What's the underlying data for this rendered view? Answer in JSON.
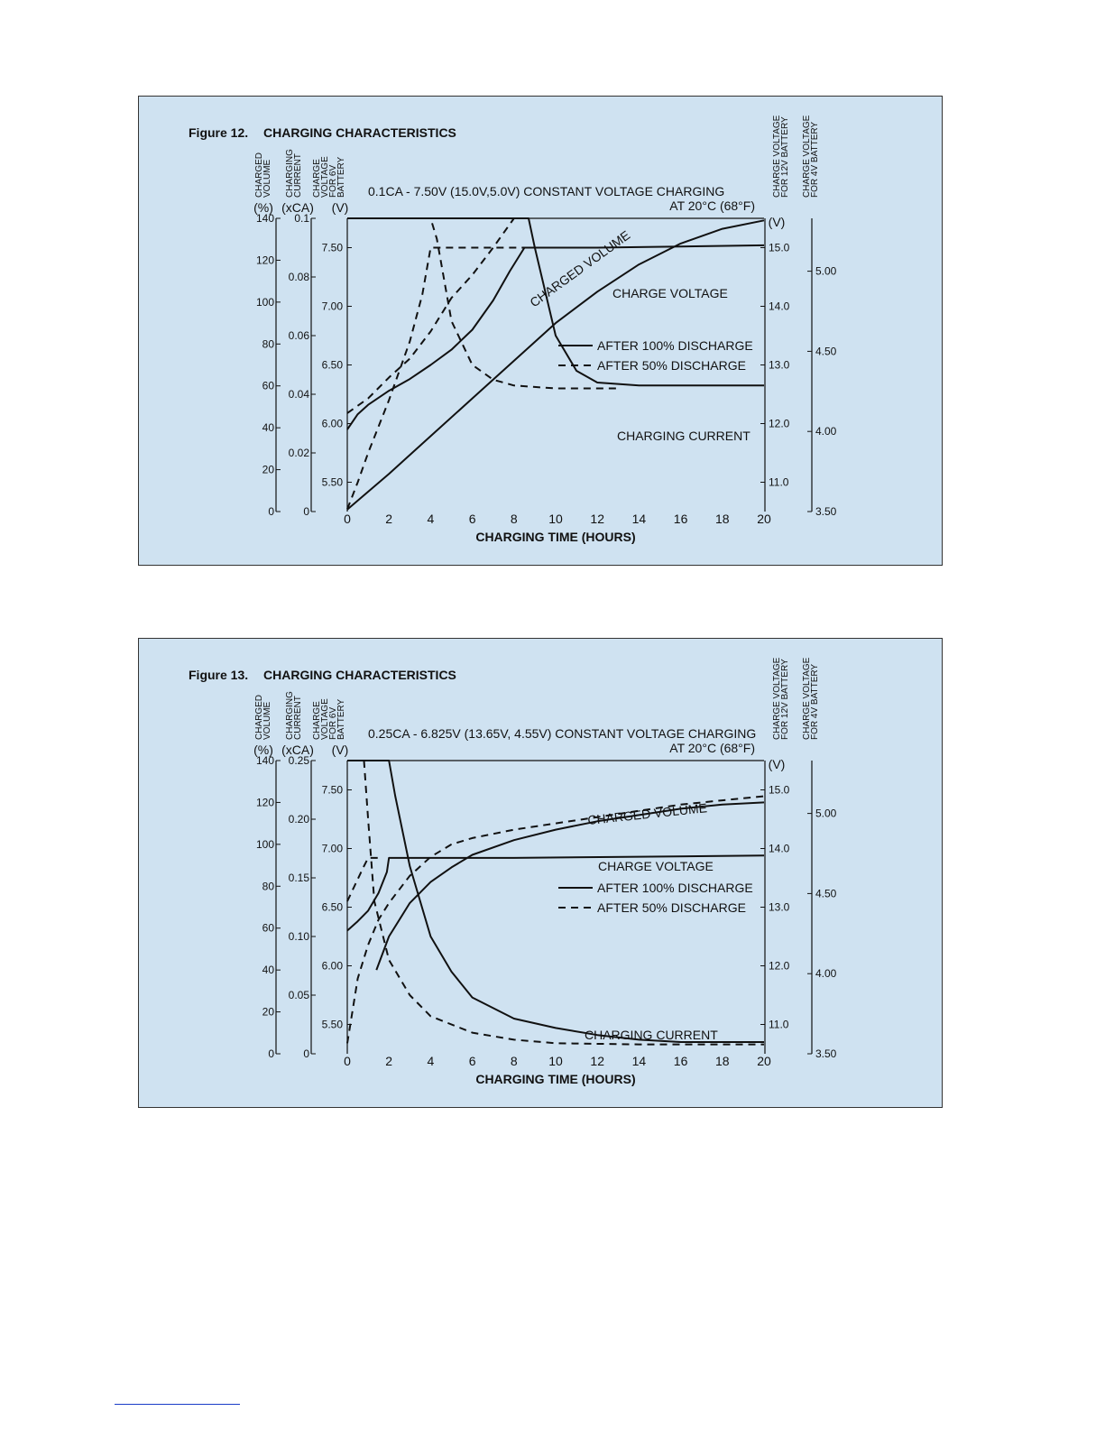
{
  "chart_data": [
    {
      "type": "line",
      "figure_label": "Figure 12.",
      "title": "CHARGING CHARACTERISTICS",
      "subtitle": "0.1CA - 7.50V (15.0V,5.0V) CONSTANT VOLTAGE CHARGING",
      "temperature": "AT 20°C (68°F)",
      "xlabel": "CHARGING TIME (HOURS)",
      "xlim": [
        0,
        20
      ],
      "x_ticks": [
        "0",
        "2",
        "4",
        "6",
        "8",
        "10",
        "12",
        "14",
        "16",
        "18",
        "20"
      ],
      "axes": {
        "charged_volume": {
          "label_lines": [
            "CHARGED",
            "VOLUME"
          ],
          "unit": "(%)",
          "range": [
            0,
            140
          ],
          "ticks": [
            "0",
            "20",
            "40",
            "60",
            "80",
            "100",
            "120",
            "140"
          ]
        },
        "charging_current": {
          "label_lines": [
            "CHARGING",
            "CURRENT"
          ],
          "unit": "(xCA)",
          "range": [
            0,
            0.1
          ],
          "ticks": [
            "0",
            "0.02",
            "0.04",
            "0.06",
            "0.08",
            "0.1"
          ]
        },
        "voltage_6v": {
          "label_lines": [
            "CHARGE",
            "VOLTAGE",
            "FOR 6V",
            "BATTERY"
          ],
          "unit": "(V)",
          "range": [
            5.25,
            7.75
          ],
          "ticks": [
            "5.50",
            "6.00",
            "6.50",
            "7.00",
            "7.50"
          ]
        },
        "voltage_12v": {
          "label_lines": [
            "CHARGE VOLTAGE",
            "FOR 12V BATTERY"
          ],
          "unit": "(V)",
          "range": [
            10.5,
            15.5
          ],
          "ticks": [
            "11.0",
            "12.0",
            "13.0",
            "14.0",
            "15.0"
          ]
        },
        "voltage_4v": {
          "label_lines": [
            "CHARGE VOLTAGE",
            "FOR 4V BATTERY"
          ],
          "unit": "",
          "range": [
            3.5,
            5.33
          ],
          "ticks": [
            "3.50",
            "4.00",
            "4.50",
            "5.00"
          ]
        }
      },
      "legend": {
        "solid": "AFTER 100% DISCHARGE",
        "dashed": "AFTER 50% DISCHARGE"
      },
      "annotations": {
        "volume": "CHARGED VOLUME",
        "voltage": "CHARGE VOLTAGE",
        "current": "CHARGING CURRENT"
      },
      "series": [
        {
          "name": "CHARGED VOLUME",
          "style": "solid",
          "axis": "charged_volume",
          "points": [
            [
              0,
              1
            ],
            [
              2,
              18
            ],
            [
              4,
              36
            ],
            [
              6,
              54
            ],
            [
              8,
              72
            ],
            [
              9,
              81
            ],
            [
              10,
              90
            ],
            [
              12,
              105
            ],
            [
              14,
              118
            ],
            [
              16,
              128
            ],
            [
              18,
              135
            ],
            [
              20,
              139
            ]
          ]
        },
        {
          "name": "CHARGED VOLUME",
          "style": "dashed",
          "axis": "charged_volume",
          "points": [
            [
              0,
              47
            ],
            [
              1,
              54
            ],
            [
              2,
              64
            ],
            [
              3,
              73
            ],
            [
              4,
              86
            ],
            [
              5,
              102
            ],
            [
              6,
              113
            ],
            [
              7,
              126
            ],
            [
              8,
              140
            ]
          ]
        },
        {
          "name": "CHARGE VOLTAGE",
          "style": "solid",
          "axis": "voltage_6v",
          "points": [
            [
              0,
              5.95
            ],
            [
              0.5,
              6.08
            ],
            [
              1,
              6.16
            ],
            [
              2,
              6.28
            ],
            [
              3,
              6.38
            ],
            [
              4,
              6.5
            ],
            [
              5,
              6.63
            ],
            [
              6,
              6.8
            ],
            [
              7,
              7.05
            ],
            [
              7.8,
              7.3
            ],
            [
              8.5,
              7.5
            ],
            [
              12,
              7.5
            ],
            [
              16,
              7.51
            ],
            [
              20,
              7.52
            ]
          ]
        },
        {
          "name": "CHARGE VOLTAGE",
          "style": "dashed",
          "axis": "voltage_6v",
          "points": [
            [
              0,
              5.27
            ],
            [
              0.5,
              5.5
            ],
            [
              1,
              5.75
            ],
            [
              2,
              6.2
            ],
            [
              3,
              6.7
            ],
            [
              3.6,
              7.1
            ],
            [
              4,
              7.5
            ],
            [
              6,
              7.5
            ],
            [
              8,
              7.5
            ],
            [
              9,
              7.5
            ]
          ]
        },
        {
          "name": "CHARGING CURRENT",
          "style": "solid",
          "axis": "charging_current",
          "points": [
            [
              0,
              0.1
            ],
            [
              8.7,
              0.1
            ],
            [
              9,
              0.09
            ],
            [
              10,
              0.06
            ],
            [
              11,
              0.048
            ],
            [
              12,
              0.044
            ],
            [
              14,
              0.043
            ],
            [
              17,
              0.043
            ],
            [
              20,
              0.043
            ]
          ]
        },
        {
          "name": "CHARGING CURRENT",
          "style": "dashed",
          "axis": "charging_current",
          "points": [
            [
              0,
              0.1
            ],
            [
              4,
              0.1
            ],
            [
              4.3,
              0.093
            ],
            [
              5,
              0.065
            ],
            [
              6,
              0.05
            ],
            [
              7,
              0.045
            ],
            [
              8,
              0.043
            ],
            [
              10,
              0.042
            ],
            [
              13,
              0.042
            ]
          ]
        }
      ]
    },
    {
      "type": "line",
      "figure_label": "Figure 13.",
      "title": "CHARGING CHARACTERISTICS",
      "subtitle": "0.25CA - 6.825V (13.65V, 4.55V) CONSTANT VOLTAGE CHARGING",
      "temperature": "AT 20°C (68°F)",
      "xlabel": "CHARGING TIME (HOURS)",
      "xlim": [
        0,
        20
      ],
      "x_ticks": [
        "0",
        "2",
        "4",
        "6",
        "8",
        "10",
        "12",
        "14",
        "16",
        "18",
        "20"
      ],
      "axes": {
        "charged_volume": {
          "label_lines": [
            "CHARGED",
            "VOLUME"
          ],
          "unit": "(%)",
          "range": [
            0,
            140
          ],
          "ticks": [
            "0",
            "20",
            "40",
            "60",
            "80",
            "100",
            "120",
            "140"
          ]
        },
        "charging_current": {
          "label_lines": [
            "CHARGING",
            "CURRENT"
          ],
          "unit": "(xCA)",
          "range": [
            0,
            0.25
          ],
          "ticks": [
            "0",
            "0.05",
            "0.10",
            "0.15",
            "0.20",
            "0.25"
          ]
        },
        "voltage_6v": {
          "label_lines": [
            "CHARGE",
            "VOLTAGE",
            "FOR 6V",
            "BATTERY"
          ],
          "unit": "(V)",
          "range": [
            5.25,
            7.75
          ],
          "ticks": [
            "5.50",
            "6.00",
            "6.50",
            "7.00",
            "7.50"
          ]
        },
        "voltage_12v": {
          "label_lines": [
            "CHARGE VOLTAGE",
            "FOR 12V BATTERY"
          ],
          "unit": "(V)",
          "range": [
            10.5,
            15.5
          ],
          "ticks": [
            "11.0",
            "12.0",
            "13.0",
            "14.0",
            "15.0"
          ]
        },
        "voltage_4v": {
          "label_lines": [
            "CHARGE VOLTAGE",
            "FOR 4V BATTERY"
          ],
          "unit": "",
          "range": [
            3.5,
            5.33
          ],
          "ticks": [
            "3.50",
            "4.00",
            "4.50",
            "5.00"
          ]
        }
      },
      "legend": {
        "solid": "AFTER 100% DISCHARGE",
        "dashed": "AFTER 50% DISCHARGE"
      },
      "annotations": {
        "volume": "CHARGED VOLUME",
        "voltage": "CHARGE VOLTAGE",
        "current": "CHARGING CURRENT"
      },
      "series": [
        {
          "name": "CHARGED VOLUME",
          "style": "solid",
          "axis": "charged_volume",
          "points": [
            [
              1.4,
              40
            ],
            [
              2,
              56
            ],
            [
              3,
              72
            ],
            [
              4,
              82
            ],
            [
              5,
              89
            ],
            [
              6,
              95
            ],
            [
              8,
              102
            ],
            [
              10,
              107
            ],
            [
              12,
              111
            ],
            [
              14,
              114
            ],
            [
              16,
              117
            ],
            [
              18,
              119
            ],
            [
              20,
              120
            ]
          ]
        },
        {
          "name": "CHARGED VOLUME",
          "style": "dashed",
          "axis": "charged_volume",
          "points": [
            [
              0,
              5
            ],
            [
              0.5,
              36
            ],
            [
              1,
              52
            ],
            [
              1.5,
              64
            ],
            [
              2,
              72
            ],
            [
              3,
              85
            ],
            [
              4,
              94
            ],
            [
              5,
              100
            ],
            [
              6,
              103
            ],
            [
              8,
              107
            ],
            [
              10,
              110
            ],
            [
              12,
              113
            ],
            [
              14,
              116
            ],
            [
              16,
              119
            ],
            [
              18,
              121
            ],
            [
              20,
              123
            ]
          ]
        },
        {
          "name": "CHARGE VOLTAGE",
          "style": "solid",
          "axis": "voltage_6v",
          "points": [
            [
              0,
              6.3
            ],
            [
              0.5,
              6.38
            ],
            [
              1,
              6.47
            ],
            [
              1.5,
              6.62
            ],
            [
              1.9,
              6.8
            ],
            [
              2,
              6.92
            ],
            [
              8,
              6.92
            ],
            [
              14,
              6.93
            ],
            [
              20,
              6.94
            ]
          ]
        },
        {
          "name": "CHARGE VOLTAGE",
          "style": "dashed",
          "axis": "voltage_6v",
          "points": [
            [
              0,
              6.55
            ],
            [
              0.4,
              6.7
            ],
            [
              0.8,
              6.85
            ],
            [
              1,
              6.92
            ],
            [
              1.5,
              6.92
            ]
          ]
        },
        {
          "name": "CHARGING CURRENT",
          "style": "solid",
          "axis": "charging_current",
          "points": [
            [
              0,
              0.25
            ],
            [
              2,
              0.25
            ],
            [
              2.3,
              0.22
            ],
            [
              3,
              0.16
            ],
            [
              4,
              0.1
            ],
            [
              5,
              0.07
            ],
            [
              6,
              0.048
            ],
            [
              8,
              0.03
            ],
            [
              10,
              0.022
            ],
            [
              12,
              0.016
            ],
            [
              14,
              0.012
            ],
            [
              16,
              0.01
            ],
            [
              20,
              0.01
            ]
          ]
        },
        {
          "name": "CHARGING CURRENT",
          "style": "dashed",
          "axis": "charging_current",
          "points": [
            [
              0.8,
              0.25
            ],
            [
              1,
              0.2
            ],
            [
              1.3,
              0.13
            ],
            [
              2,
              0.08
            ],
            [
              3,
              0.05
            ],
            [
              4,
              0.032
            ],
            [
              6,
              0.018
            ],
            [
              8,
              0.012
            ],
            [
              10,
              0.009
            ],
            [
              14,
              0.008
            ],
            [
              20,
              0.008
            ]
          ]
        }
      ]
    }
  ]
}
